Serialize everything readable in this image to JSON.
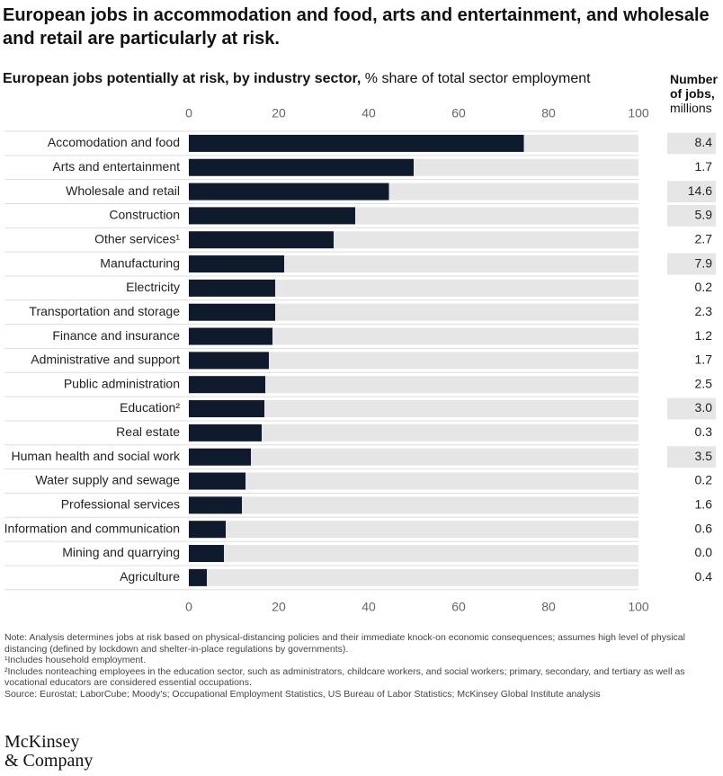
{
  "chart_data": {
    "type": "bar",
    "orientation": "horizontal",
    "title": "European jobs in accommodation and food, arts and entertainment, and wholesale and retail are particularly at risk.",
    "subtitle": "European jobs potentially at risk, by industry sector,",
    "unit": "% share of total sector employment",
    "categories": [
      "Accomodation and food",
      "Arts and entertainment",
      "Wholesale and retail",
      "Construction",
      "Other services¹",
      "Manufacturing",
      "Electricity",
      "Transportation and storage",
      "Finance and insurance",
      "Administrative and support",
      "Public administration",
      "Education²",
      "Real estate",
      "Human health and social work",
      "Water supply and sewage",
      "Professional services",
      "Information and communication",
      "Mining and quarrying",
      "Agriculture"
    ],
    "values": [
      74.5,
      50,
      44.5,
      37,
      32.2,
      21.2,
      19.2,
      19.2,
      18.6,
      17.8,
      17,
      16.8,
      16.2,
      13.8,
      12.6,
      11.8,
      8.2,
      7.8,
      4
    ],
    "color": "#0f1b2d",
    "track_color": "#e6e6e6",
    "xlim": [
      0,
      100
    ],
    "xticks": [
      0,
      20,
      40,
      60,
      80,
      100
    ],
    "jobs": {
      "name": "Number of jobs,",
      "unit": "millions",
      "values": [
        8.4,
        1.7,
        14.6,
        5.9,
        2.7,
        7.9,
        0.2,
        2.3,
        1.2,
        1.7,
        2.5,
        3,
        0.3,
        3.5,
        0.2,
        1.6,
        0.6,
        0,
        0.4
      ],
      "value_labels": [
        "8.4",
        "1.7",
        "14.6",
        "5.9",
        "2.7",
        "7.9",
        "0.2",
        "2.3",
        "1.2",
        "1.7",
        "2.5",
        "3.0",
        "0.3",
        "3.5",
        "0.2",
        "1.6",
        "0.6",
        "0.0",
        "0.4"
      ],
      "highlight_min": 3,
      "highlight_color": "#e6e6e6"
    },
    "notes": [
      "Note: Analysis determines jobs at risk based on physical-distancing policies and their immediate knock-on economic consequences; assumes high level of physical distancing (defined by lockdown and shelter-in-place regulations by governments).",
      "¹Includes household employment.",
      "²Includes nonteaching employees in the education sector, such as administrators, childcare workers, and social workers; primary, secondary, and tertiary as well as vocational educators are considered essential occupations.",
      "Source: Eurostat; LaborCube; Moody's; Occupational Employment Statistics, US Bureau of Labor Statistics; McKinsey Global Institute analysis"
    ],
    "logo": [
      "McKinsey",
      "& Company"
    ]
  }
}
